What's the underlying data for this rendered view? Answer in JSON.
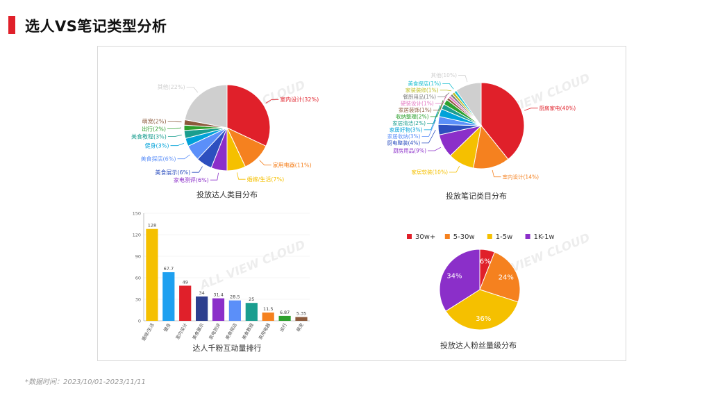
{
  "page": {
    "title": "选人VS笔记类型分析",
    "footnote": "*数据时间：2023/10/01-2023/11/11",
    "watermark_text": "ALL VIEW CLOUD"
  },
  "chart_data": [
    {
      "id": "talent-category",
      "type": "pie",
      "title": "投放达人类目分布",
      "slices": [
        {
          "label": "室内设计",
          "value": 32,
          "display": "室内设计(32%)",
          "color": "#e0202a"
        },
        {
          "label": "家用电器",
          "value": 11,
          "display": "家用电器(11%)",
          "color": "#f5811f"
        },
        {
          "label": "婚嫁/生活",
          "value": 7,
          "display": "婚嫁/生活(7%)",
          "color": "#f5c000"
        },
        {
          "label": "家电测评",
          "value": 6,
          "display": "家电测评(6%)",
          "color": "#8b2fc9"
        },
        {
          "label": "美食展示",
          "value": 6,
          "display": "美食展示(6%)",
          "color": "#2d4fbf"
        },
        {
          "label": "美食探店",
          "value": 6,
          "display": "美食探店(6%)",
          "color": "#5b8ff9"
        },
        {
          "label": "健身",
          "value": 3,
          "display": "健身(3%)",
          "color": "#00a2d9"
        },
        {
          "label": "美食教程",
          "value": 3,
          "display": "美食教程(3%)",
          "color": "#1a9e8f"
        },
        {
          "label": "出行",
          "value": 2,
          "display": "出行(2%)",
          "color": "#2da02d"
        },
        {
          "label": "萌宠",
          "value": 2,
          "display": "萌宠(2%)",
          "color": "#8c5a3c"
        },
        {
          "label": "其他",
          "value": 22,
          "display": "其他(22%)",
          "color": "#cfcfcf"
        }
      ]
    },
    {
      "id": "note-category",
      "type": "pie",
      "title": "投放笔记类目分布",
      "slices": [
        {
          "label": "厨房家电",
          "value": 40,
          "display": "厨房家电(40%)",
          "color": "#e0202a"
        },
        {
          "label": "室内设计",
          "value": 14,
          "display": "室内设计(14%)",
          "color": "#f5811f"
        },
        {
          "label": "家居软装",
          "value": 10,
          "display": "家居软装(10%)",
          "color": "#f5c000"
        },
        {
          "label": "厨房用品",
          "value": 9,
          "display": "厨房用品(9%)",
          "color": "#8b2fc9"
        },
        {
          "label": "厨电整装",
          "value": 4,
          "display": "厨电整装(4%)",
          "color": "#2d4fbf"
        },
        {
          "label": "家居收纳",
          "value": 3,
          "display": "家居收纳(3%)",
          "color": "#5b8ff9"
        },
        {
          "label": "家居好物",
          "value": 3,
          "display": "家居好物(3%)",
          "color": "#00a2d9"
        },
        {
          "label": "家居清洁",
          "value": 2,
          "display": "家居清洁(2%)",
          "color": "#1a9e8f"
        },
        {
          "label": "收纳整理",
          "value": 2,
          "display": "收纳整理(2%)",
          "color": "#2da02d"
        },
        {
          "label": "家居装饰",
          "value": 1,
          "display": "家居装饰(1%)",
          "color": "#8c5a3c"
        },
        {
          "label": "硬装设计",
          "value": 1,
          "display": "硬装设计(1%)",
          "color": "#e377c2"
        },
        {
          "label": "餐厨用品",
          "value": 1,
          "display": "餐厨用品(1%)",
          "color": "#7f7f7f"
        },
        {
          "label": "家装装修",
          "value": 1,
          "display": "家装装修(1%)",
          "color": "#bcbd22"
        },
        {
          "label": "美食探店",
          "value": 1,
          "display": "美食探店(1%)",
          "color": "#17becf"
        },
        {
          "label": "其他",
          "value": 10,
          "display": "其他(10%)",
          "color": "#cfcfcf"
        }
      ]
    },
    {
      "id": "engagement-ranking",
      "type": "bar",
      "title": "达人千粉互动量排行",
      "ylim": [
        0,
        150
      ],
      "yticks": [
        "0",
        "30",
        "60",
        "90",
        "120",
        "150"
      ],
      "categories": [
        "婚嫁/生活",
        "健身",
        "室内设计",
        "美食展示",
        "家电测评",
        "美食探店",
        "美食教程",
        "家用电器",
        "出行",
        "萌宠"
      ],
      "values": [
        128,
        67.7,
        49,
        34,
        31.4,
        28.5,
        25,
        11.5,
        6.87,
        5.35
      ],
      "value_labels": [
        "128",
        "67.7",
        "49",
        "34",
        "31.4",
        "28.5",
        "25",
        "11.5",
        "6.87",
        "5.35"
      ],
      "colors": [
        "#f5c000",
        "#1ea0f0",
        "#e0202a",
        "#2d3f8f",
        "#8b2fc9",
        "#5b8ff9",
        "#1a9e8f",
        "#f5811f",
        "#2da02d",
        "#8c5a3c"
      ]
    },
    {
      "id": "follower-tier",
      "type": "pie",
      "title": "投放达人粉丝量级分布",
      "legend_position": "top",
      "slices": [
        {
          "label": "30w+",
          "value": 6,
          "display": "6%",
          "color": "#e0202a"
        },
        {
          "label": "5-30w",
          "value": 24,
          "display": "24%",
          "color": "#f5811f"
        },
        {
          "label": "1-5w",
          "value": 36,
          "display": "36%",
          "color": "#f5c000"
        },
        {
          "label": "1K-1w",
          "value": 34,
          "display": "34%",
          "color": "#8b2fc9"
        }
      ]
    }
  ]
}
